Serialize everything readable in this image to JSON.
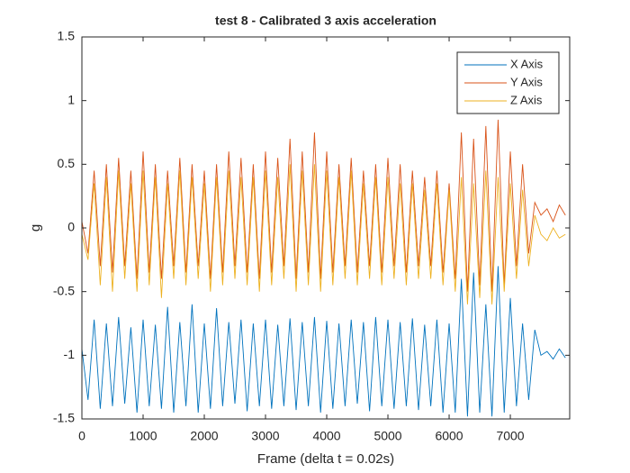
{
  "chart_data": {
    "type": "line",
    "title": "test 8 - Calibrated 3 axis acceleration",
    "x_label": "Frame (delta t = 0.02s)",
    "y_label": "g",
    "x": [
      0,
      100,
      200,
      300,
      400,
      500,
      600,
      700,
      800,
      900,
      1000,
      1100,
      1200,
      1300,
      1400,
      1500,
      1600,
      1700,
      1800,
      1900,
      2000,
      2100,
      2200,
      2300,
      2400,
      2500,
      2600,
      2700,
      2800,
      2900,
      3000,
      3100,
      3200,
      3300,
      3400,
      3500,
      3600,
      3700,
      3800,
      3900,
      4000,
      4100,
      4200,
      4300,
      4400,
      4500,
      4600,
      4700,
      4800,
      4900,
      5000,
      5100,
      5200,
      5300,
      5400,
      5500,
      5600,
      5700,
      5800,
      5900,
      6000,
      6100,
      6200,
      6300,
      6400,
      6500,
      6600,
      6700,
      6800,
      6900,
      7000,
      7100,
      7200,
      7300,
      7400,
      7500,
      7600,
      7700,
      7800,
      7900
    ],
    "series": [
      {
        "name": "X Axis",
        "color": "#0072BD",
        "values": [
          -0.95,
          -1.35,
          -0.72,
          -1.42,
          -0.75,
          -1.4,
          -0.7,
          -1.38,
          -0.78,
          -1.45,
          -0.72,
          -1.4,
          -0.76,
          -1.42,
          -0.62,
          -1.45,
          -0.74,
          -1.4,
          -0.6,
          -1.45,
          -0.75,
          -1.42,
          -0.63,
          -1.4,
          -0.74,
          -1.38,
          -0.72,
          -1.44,
          -0.75,
          -1.4,
          -0.72,
          -1.42,
          -0.76,
          -1.4,
          -0.71,
          -1.43,
          -0.74,
          -1.4,
          -0.7,
          -1.45,
          -0.73,
          -1.42,
          -0.75,
          -1.4,
          -0.72,
          -1.38,
          -0.74,
          -1.44,
          -0.7,
          -1.4,
          -0.72,
          -1.42,
          -0.74,
          -1.4,
          -0.71,
          -1.43,
          -0.76,
          -1.4,
          -0.72,
          -1.45,
          -0.75,
          -1.45,
          -0.4,
          -1.48,
          -0.35,
          -1.45,
          -0.6,
          -1.48,
          -0.3,
          -1.45,
          -0.55,
          -1.4,
          -0.75,
          -1.35,
          -0.8,
          -1.0,
          -0.97,
          -1.03,
          -0.95,
          -1.02
        ]
      },
      {
        "name": "Y Axis",
        "color": "#D95319",
        "values": [
          0.05,
          -0.2,
          0.45,
          -0.3,
          0.5,
          -0.35,
          0.55,
          -0.3,
          0.45,
          -0.4,
          0.6,
          -0.35,
          0.5,
          -0.4,
          0.45,
          -0.3,
          0.55,
          -0.35,
          0.5,
          -0.3,
          0.45,
          -0.4,
          0.5,
          -0.35,
          0.6,
          -0.3,
          0.55,
          -0.35,
          0.5,
          -0.4,
          0.6,
          -0.35,
          0.55,
          -0.3,
          0.7,
          -0.4,
          0.6,
          -0.35,
          0.75,
          -0.4,
          0.6,
          -0.35,
          0.5,
          -0.3,
          0.55,
          -0.35,
          0.45,
          -0.3,
          0.5,
          -0.35,
          0.55,
          -0.3,
          0.5,
          -0.35,
          0.45,
          -0.3,
          0.4,
          -0.3,
          0.45,
          -0.35,
          0.35,
          -0.4,
          0.75,
          -0.5,
          0.7,
          -0.45,
          0.8,
          -0.5,
          0.85,
          -0.45,
          0.6,
          -0.3,
          0.5,
          -0.2,
          0.2,
          0.1,
          0.15,
          0.05,
          0.18,
          0.1
        ]
      },
      {
        "name": "Z Axis",
        "color": "#EDB120",
        "values": [
          -0.05,
          -0.25,
          0.35,
          -0.45,
          0.4,
          -0.5,
          0.45,
          -0.4,
          0.35,
          -0.5,
          0.45,
          -0.45,
          0.4,
          -0.55,
          0.35,
          -0.4,
          0.45,
          -0.45,
          0.4,
          -0.4,
          0.35,
          -0.5,
          0.4,
          -0.45,
          0.45,
          -0.4,
          0.4,
          -0.45,
          0.4,
          -0.5,
          0.45,
          -0.45,
          0.4,
          -0.4,
          0.5,
          -0.5,
          0.45,
          -0.45,
          0.5,
          -0.5,
          0.45,
          -0.45,
          0.4,
          -0.4,
          0.45,
          -0.45,
          0.35,
          -0.4,
          0.4,
          -0.45,
          0.4,
          -0.4,
          0.35,
          -0.45,
          0.35,
          -0.4,
          0.3,
          -0.4,
          0.35,
          -0.45,
          0.3,
          -0.5,
          0.4,
          -0.6,
          0.35,
          -0.55,
          0.45,
          -0.6,
          0.4,
          -0.5,
          0.35,
          -0.4,
          0.3,
          -0.3,
          0.1,
          -0.05,
          -0.1,
          0.0,
          -0.08,
          -0.05
        ]
      }
    ],
    "xlim": [
      0,
      7970
    ],
    "xticks": [
      0,
      1000,
      2000,
      3000,
      4000,
      5000,
      6000,
      7000
    ],
    "ylim": [
      -1.5,
      1.5
    ],
    "yticks": [
      -1.5,
      -1,
      -0.5,
      0,
      0.5,
      1,
      1.5
    ],
    "legend": "northeast"
  }
}
